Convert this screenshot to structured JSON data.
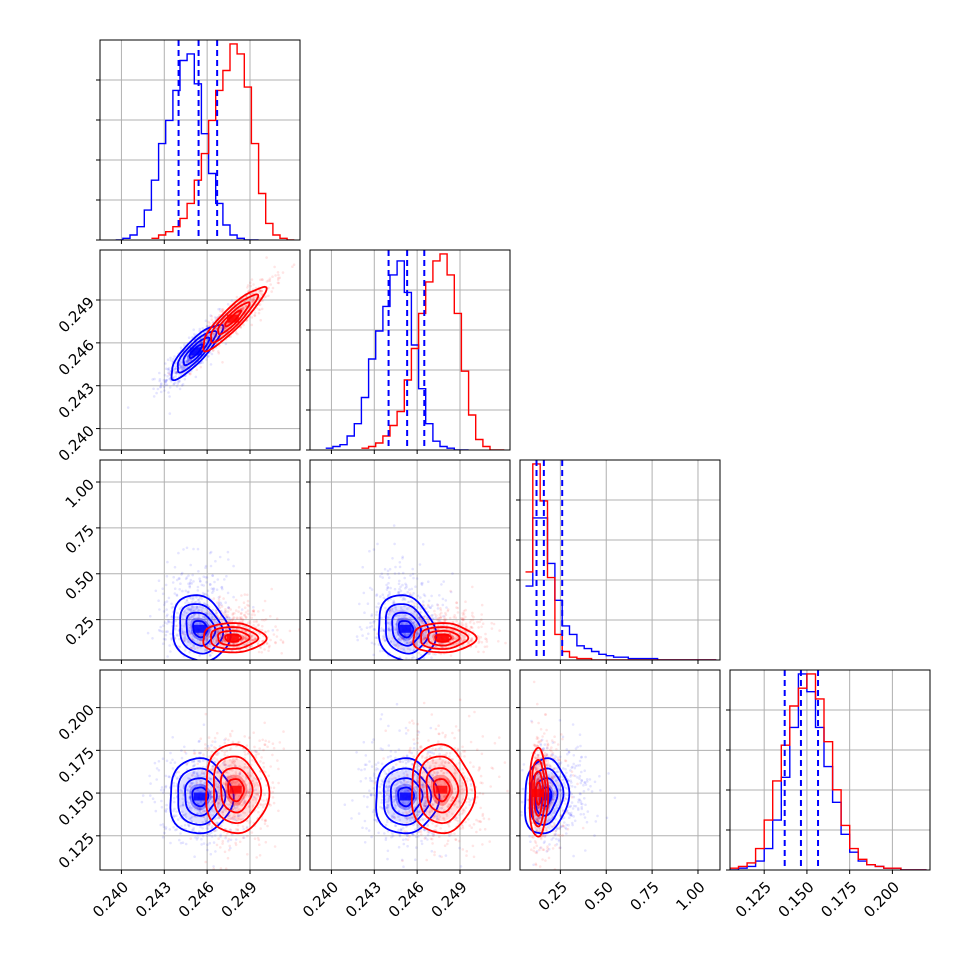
{
  "chart_data": {
    "type": "corner",
    "grid": true,
    "series": [
      {
        "color": "#0000ff",
        "role": "primary (with quantile lines)"
      },
      {
        "color": "#ff0000",
        "role": "secondary"
      }
    ],
    "axes": {
      "a": {
        "range": [
          0.2385,
          0.2525
        ],
        "ticks": [
          0.24,
          0.243,
          0.246,
          0.249
        ],
        "tick_labels": [
          "0.240",
          "0.243",
          "0.246",
          "0.249"
        ]
      },
      "b": {
        "range": [
          0.2385,
          0.2525
        ],
        "ticks": [
          0.24,
          0.243,
          0.246,
          0.249
        ],
        "tick_labels": [
          "0.240",
          "0.243",
          "0.246",
          "0.249"
        ]
      },
      "c": {
        "range": [
          0.03,
          1.12
        ],
        "ticks": [
          0.25,
          0.5,
          0.75,
          1.0
        ],
        "tick_labels": [
          "0.25",
          "0.50",
          "0.75",
          "1.00"
        ]
      },
      "d": {
        "range": [
          0.105,
          0.222
        ],
        "ticks": [
          0.125,
          0.15,
          0.175,
          0.2
        ],
        "tick_labels": [
          "0.125",
          "0.150",
          "0.175",
          "0.200"
        ]
      }
    },
    "marginals": [
      {
        "param": "a",
        "blue_edges": [
          0.2396,
          0.2401,
          0.2406,
          0.2411,
          0.2416,
          0.2421,
          0.2426,
          0.2431,
          0.2436,
          0.2441,
          0.2446,
          0.2451,
          0.2456,
          0.2461,
          0.2466,
          0.2471,
          0.2476,
          0.2481,
          0.2486,
          0.2491,
          0.2496
        ],
        "blue_counts": [
          0,
          1,
          3,
          8,
          18,
          36,
          58,
          72,
          90,
          108,
          112,
          94,
          64,
          40,
          22,
          9,
          3,
          1,
          0,
          0
        ],
        "red_edges": [
          0.2421,
          0.2426,
          0.2431,
          0.2436,
          0.2441,
          0.2446,
          0.2451,
          0.2456,
          0.2461,
          0.2466,
          0.2471,
          0.2476,
          0.2481,
          0.2486,
          0.2491,
          0.2496,
          0.2501,
          0.2506,
          0.2511,
          0.2516,
          0.2521
        ],
        "red_counts": [
          1,
          3,
          5,
          8,
          13,
          22,
          36,
          52,
          72,
          90,
          102,
          118,
          112,
          92,
          58,
          28,
          10,
          3,
          1,
          0
        ],
        "quantiles_blue": [
          0.244,
          0.2454,
          0.2467
        ]
      },
      {
        "param": "b",
        "blue_edges": [
          0.2396,
          0.2401,
          0.2406,
          0.2411,
          0.2416,
          0.2421,
          0.2426,
          0.2431,
          0.2436,
          0.2441,
          0.2446,
          0.2451,
          0.2456,
          0.2461,
          0.2466,
          0.2471,
          0.2476,
          0.2481,
          0.2486,
          0.2491,
          0.2496
        ],
        "blue_counts": [
          1,
          2,
          3,
          8,
          15,
          30,
          52,
          68,
          82,
          100,
          108,
          90,
          60,
          35,
          15,
          5,
          2,
          1,
          0,
          0
        ],
        "red_edges": [
          0.2421,
          0.2426,
          0.2431,
          0.2436,
          0.2441,
          0.2446,
          0.2451,
          0.2456,
          0.2461,
          0.2466,
          0.2471,
          0.2476,
          0.2481,
          0.2486,
          0.2491,
          0.2496,
          0.2501,
          0.2506,
          0.2511,
          0.2516,
          0.2521
        ],
        "red_counts": [
          1,
          2,
          4,
          8,
          14,
          22,
          40,
          58,
          78,
          96,
          108,
          112,
          100,
          78,
          45,
          20,
          6,
          2,
          0,
          0
        ],
        "quantiles_blue": [
          0.244,
          0.2453,
          0.2465
        ]
      },
      {
        "param": "c",
        "blue_edges": [
          0.06,
          0.1,
          0.14,
          0.18,
          0.22,
          0.26,
          0.3,
          0.34,
          0.38,
          0.42,
          0.46,
          0.5,
          0.54,
          0.58,
          0.62,
          0.66,
          0.7,
          0.74,
          0.78,
          0.82,
          0.86,
          0.9,
          0.94,
          0.98,
          1.02,
          1.06,
          1.1
        ],
        "blue_counts": [
          52,
          100,
          100,
          68,
          42,
          24,
          18,
          10,
          8,
          6,
          4,
          3,
          2,
          2,
          1,
          1,
          1,
          1,
          0,
          0,
          0,
          0,
          0,
          0,
          0,
          0
        ],
        "red_edges": [
          0.06,
          0.1,
          0.14,
          0.18,
          0.22,
          0.26,
          0.3,
          0.34,
          0.38,
          0.42,
          0.46,
          0.5,
          0.54,
          0.58,
          0.62,
          0.66,
          0.7,
          0.74,
          0.78,
          0.82,
          0.86,
          0.9,
          0.94,
          0.98,
          1.02,
          1.06,
          1.1
        ],
        "red_counts": [
          62,
          138,
          112,
          58,
          18,
          6,
          2,
          1,
          1,
          0,
          0,
          0,
          0,
          0,
          0,
          0,
          0,
          0,
          0,
          0,
          0,
          0,
          0,
          0,
          0,
          0
        ],
        "quantiles_blue": [
          0.12,
          0.16,
          0.26
        ]
      },
      {
        "param": "d",
        "blue_edges": [
          0.105,
          0.11,
          0.115,
          0.12,
          0.125,
          0.13,
          0.135,
          0.14,
          0.145,
          0.15,
          0.155,
          0.16,
          0.165,
          0.17,
          0.175,
          0.18,
          0.185,
          0.19,
          0.195,
          0.2,
          0.205,
          0.21,
          0.215,
          0.22
        ],
        "blue_counts": [
          0,
          1,
          2,
          5,
          12,
          28,
          52,
          80,
          110,
          100,
          80,
          58,
          38,
          20,
          10,
          5,
          3,
          2,
          1,
          1,
          0,
          0,
          0
        ],
        "red_edges": [
          0.105,
          0.11,
          0.115,
          0.12,
          0.125,
          0.13,
          0.135,
          0.14,
          0.145,
          0.15,
          0.155,
          0.16,
          0.165,
          0.17,
          0.175,
          0.18,
          0.185,
          0.19,
          0.195,
          0.2,
          0.205,
          0.21,
          0.215,
          0.22
        ],
        "red_counts": [
          1,
          2,
          4,
          12,
          28,
          50,
          70,
          92,
          102,
          110,
          96,
          72,
          45,
          25,
          12,
          6,
          3,
          2,
          1,
          1,
          0,
          0,
          0
        ],
        "quantiles_blue": [
          0.137,
          0.1465,
          0.1565
        ]
      }
    ],
    "joints": [
      {
        "x": "a",
        "y": "b",
        "blue": {
          "mean": [
            0.2452,
            0.2454
          ],
          "sd": [
            0.0009,
            0.00095
          ],
          "rho": 0.85
        },
        "red": {
          "mean": [
            0.2478,
            0.2477
          ],
          "sd": [
            0.0011,
            0.0011
          ],
          "rho": 0.9
        }
      },
      {
        "x": "a",
        "y": "c",
        "blue": {
          "mean": [
            0.2455,
            0.2
          ],
          "sd": [
            0.001,
            0.09
          ],
          "rho": -0.15
        },
        "red": {
          "mean": [
            0.2478,
            0.15
          ],
          "sd": [
            0.0011,
            0.04
          ],
          "rho": 0.0
        }
      },
      {
        "x": "b",
        "y": "c",
        "blue": {
          "mean": [
            0.2452,
            0.2
          ],
          "sd": [
            0.001,
            0.09
          ],
          "rho": -0.15
        },
        "red": {
          "mean": [
            0.2478,
            0.15
          ],
          "sd": [
            0.0011,
            0.04
          ],
          "rho": 0.0
        }
      },
      {
        "x": "a",
        "y": "d",
        "blue": {
          "mean": [
            0.2455,
            0.148
          ],
          "sd": [
            0.0011,
            0.011
          ],
          "rho": 0.0
        },
        "red": {
          "mean": [
            0.248,
            0.152
          ],
          "sd": [
            0.0011,
            0.013
          ],
          "rho": -0.05
        }
      },
      {
        "x": "b",
        "y": "d",
        "blue": {
          "mean": [
            0.2452,
            0.148
          ],
          "sd": [
            0.0011,
            0.011
          ],
          "rho": 0.0
        },
        "red": {
          "mean": [
            0.2477,
            0.152
          ],
          "sd": [
            0.0011,
            0.013
          ],
          "rho": -0.05
        }
      },
      {
        "x": "c",
        "y": "d",
        "blue": {
          "mean": [
            0.17,
            0.148
          ],
          "sd": [
            0.06,
            0.011
          ],
          "rho": 0.1
        },
        "red": {
          "mean": [
            0.13,
            0.15
          ],
          "sd": [
            0.025,
            0.013
          ],
          "rho": 0.0
        }
      }
    ]
  }
}
